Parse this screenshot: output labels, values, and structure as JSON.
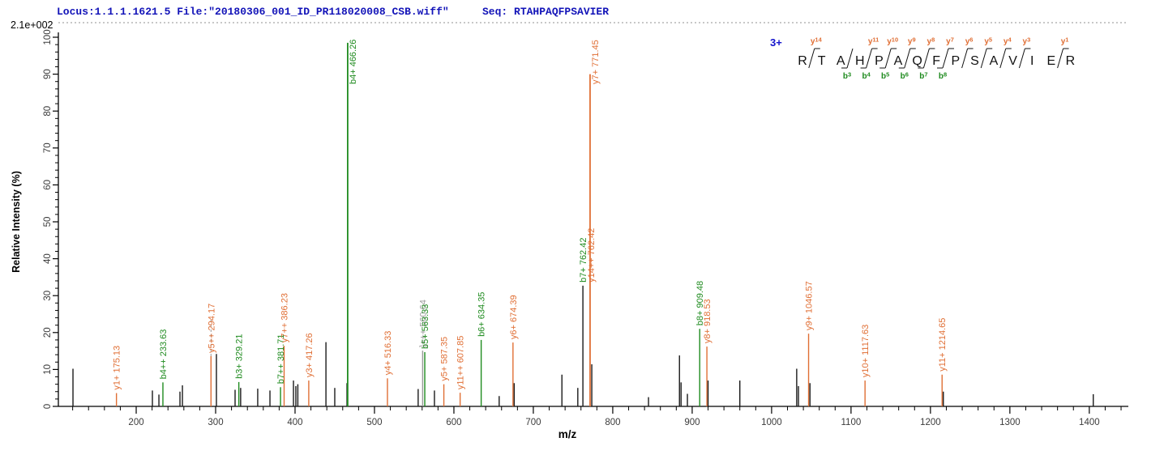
{
  "header": {
    "locus_file": "Locus:1.1.1.1621.5 File:\"20180306_001_ID_PR118020008_CSB.wiff\"",
    "seq_label": "Seq: ",
    "seq_value": "RTAHPAQFPSAVIER"
  },
  "colors": {
    "header_blue": "#1213b8",
    "y_ion": "#e06f35",
    "b_ion": "#1f8b1f",
    "precursor": "#9a9a9a",
    "peak_black": "#1a1a1a",
    "axis": "#000000",
    "tick_text": "#3c3c3c",
    "charge_blue": "#1414cc",
    "dotted_line": "#909090"
  },
  "chart_data": {
    "type": "bar",
    "subtype": "ms2-peptide-spectrum",
    "title": "",
    "xlabel": "m/z",
    "ylabel": "Relative  Intensity (%)",
    "y_max_label": "2.1e+002",
    "xlim": [
      102,
      1442
    ],
    "ylim": [
      0,
      100
    ],
    "x_major_ticks": [
      200,
      300,
      400,
      500,
      600,
      700,
      800,
      900,
      1000,
      1100,
      1200,
      1300,
      1400
    ],
    "x_minor_step": 20,
    "y_major_ticks": [
      0,
      10,
      20,
      30,
      40,
      50,
      60,
      70,
      80,
      90,
      100
    ],
    "y_minor_step": 2,
    "grid": false,
    "peaks": [
      {
        "mz": 120.4,
        "pct": 10.2,
        "type": "black"
      },
      {
        "mz": 175.13,
        "pct": 3.6,
        "type": "y",
        "label": "y1+ 175.13"
      },
      {
        "mz": 220.4,
        "pct": 4.3,
        "type": "black"
      },
      {
        "mz": 228.6,
        "pct": 3.2,
        "type": "black"
      },
      {
        "mz": 233.63,
        "pct": 6.5,
        "type": "b",
        "label": "b4++ 233.63"
      },
      {
        "mz": 255.1,
        "pct": 4.0,
        "type": "black"
      },
      {
        "mz": 258.2,
        "pct": 5.7,
        "type": "black"
      },
      {
        "mz": 294.17,
        "pct": 13.6,
        "type": "y",
        "label": "y5++ 294.17",
        "leader": true
      },
      {
        "mz": 301.0,
        "pct": 14.2,
        "type": "black"
      },
      {
        "mz": 324.5,
        "pct": 4.5,
        "type": "black"
      },
      {
        "mz": 329.21,
        "pct": 6.6,
        "type": "b",
        "label": "b3+ 329.21"
      },
      {
        "mz": 331.5,
        "pct": 5.0,
        "type": "black"
      },
      {
        "mz": 353.0,
        "pct": 4.8,
        "type": "black"
      },
      {
        "mz": 368.4,
        "pct": 4.3,
        "type": "black"
      },
      {
        "mz": 381.71,
        "pct": 5.2,
        "type": "b",
        "label": "b7++ 381.71"
      },
      {
        "mz": 386.23,
        "pct": 16.4,
        "type": "y",
        "label": "y7++ 386.23"
      },
      {
        "mz": 398.0,
        "pct": 7.0,
        "type": "black"
      },
      {
        "mz": 401.0,
        "pct": 5.5,
        "type": "black"
      },
      {
        "mz": 403.5,
        "pct": 6.0,
        "type": "black"
      },
      {
        "mz": 417.26,
        "pct": 7.0,
        "type": "y",
        "label": "y3+ 417.26"
      },
      {
        "mz": 438.9,
        "pct": 17.4,
        "type": "black"
      },
      {
        "mz": 450.0,
        "pct": 5.0,
        "type": "black"
      },
      {
        "mz": 465.4,
        "pct": 6.3,
        "type": "black"
      },
      {
        "mz": 466.26,
        "pct": 98.5,
        "type": "b",
        "label": "b4+ 466.26",
        "label_pos": "top"
      },
      {
        "mz": 516.33,
        "pct": 7.6,
        "type": "y",
        "label": "y4+ 516.33"
      },
      {
        "mz": 555.0,
        "pct": 4.7,
        "type": "black"
      },
      {
        "mz": 560.64,
        "pct": 15.1,
        "type": "precursor",
        "label": "]+++ 560.64"
      },
      {
        "mz": 563.33,
        "pct": 14.7,
        "type": "b",
        "label": "b5+ 563.33"
      },
      {
        "mz": 575.5,
        "pct": 4.3,
        "type": "black"
      },
      {
        "mz": 587.35,
        "pct": 6.0,
        "type": "y",
        "label": "y5+ 587.35"
      },
      {
        "mz": 607.85,
        "pct": 3.7,
        "type": "y",
        "label": "y11++ 607.85"
      },
      {
        "mz": 634.35,
        "pct": 18.0,
        "type": "b",
        "label": "b6+ 634.35"
      },
      {
        "mz": 657.0,
        "pct": 2.8,
        "type": "black"
      },
      {
        "mz": 674.39,
        "pct": 17.3,
        "type": "y",
        "label": "y6+ 674.39"
      },
      {
        "mz": 675.9,
        "pct": 6.3,
        "type": "black"
      },
      {
        "mz": 736.0,
        "pct": 8.6,
        "type": "black"
      },
      {
        "mz": 756.0,
        "pct": 5.0,
        "type": "black"
      },
      {
        "mz": 762.42,
        "pct": 32.7,
        "type": "black",
        "label": "b7+ 762.42",
        "label_type": "b",
        "label2": "y14++ 762.42",
        "label2_type": "y"
      },
      {
        "mz": 771.45,
        "pct": 90.0,
        "type": "y",
        "label": "y7+ 771.45",
        "label_pos": "top"
      },
      {
        "mz": 773.6,
        "pct": 11.4,
        "type": "black"
      },
      {
        "mz": 845.0,
        "pct": 2.5,
        "type": "black"
      },
      {
        "mz": 884.0,
        "pct": 13.8,
        "type": "black"
      },
      {
        "mz": 886.0,
        "pct": 6.5,
        "type": "black"
      },
      {
        "mz": 894.0,
        "pct": 3.4,
        "type": "black"
      },
      {
        "mz": 909.48,
        "pct": 21.0,
        "type": "b",
        "label": "b8+ 909.48"
      },
      {
        "mz": 918.53,
        "pct": 16.2,
        "type": "y",
        "label": "y8+ 918.53"
      },
      {
        "mz": 920.0,
        "pct": 7.0,
        "type": "black"
      },
      {
        "mz": 960.0,
        "pct": 7.0,
        "type": "black"
      },
      {
        "mz": 1031.6,
        "pct": 10.2,
        "type": "black"
      },
      {
        "mz": 1033.8,
        "pct": 5.5,
        "type": "black"
      },
      {
        "mz": 1046.57,
        "pct": 19.7,
        "type": "y",
        "label": "y9+ 1046.57"
      },
      {
        "mz": 1048.3,
        "pct": 6.3,
        "type": "black"
      },
      {
        "mz": 1117.63,
        "pct": 7.0,
        "type": "y",
        "label": "y10+ 1117.63"
      },
      {
        "mz": 1214.65,
        "pct": 8.6,
        "type": "y",
        "label": "y11+ 1214.65"
      },
      {
        "mz": 1216.2,
        "pct": 4.0,
        "type": "black"
      },
      {
        "mz": 1405.0,
        "pct": 3.3,
        "type": "black"
      }
    ]
  },
  "sequence_panel": {
    "charge": "3+",
    "residues": [
      "R",
      "T",
      "A",
      "H",
      "P",
      "A",
      "Q",
      "F",
      "P",
      "S",
      "A",
      "V",
      "I",
      "E",
      "R"
    ],
    "cuts": [
      {
        "gap": 1,
        "y": "y14"
      },
      {
        "gap": 3,
        "b": "b3"
      },
      {
        "gap": 4,
        "y": "y11",
        "b": "b4"
      },
      {
        "gap": 5,
        "y": "y10",
        "b": "b5"
      },
      {
        "gap": 6,
        "y": "y9",
        "b": "b6"
      },
      {
        "gap": 7,
        "y": "y8",
        "b": "b7"
      },
      {
        "gap": 8,
        "y": "y7",
        "b": "b8"
      },
      {
        "gap": 9,
        "y": "y6"
      },
      {
        "gap": 10,
        "y": "y5"
      },
      {
        "gap": 11,
        "y": "y4"
      },
      {
        "gap": 12,
        "y": "y3"
      },
      {
        "gap": 14,
        "y": "y1"
      }
    ]
  }
}
